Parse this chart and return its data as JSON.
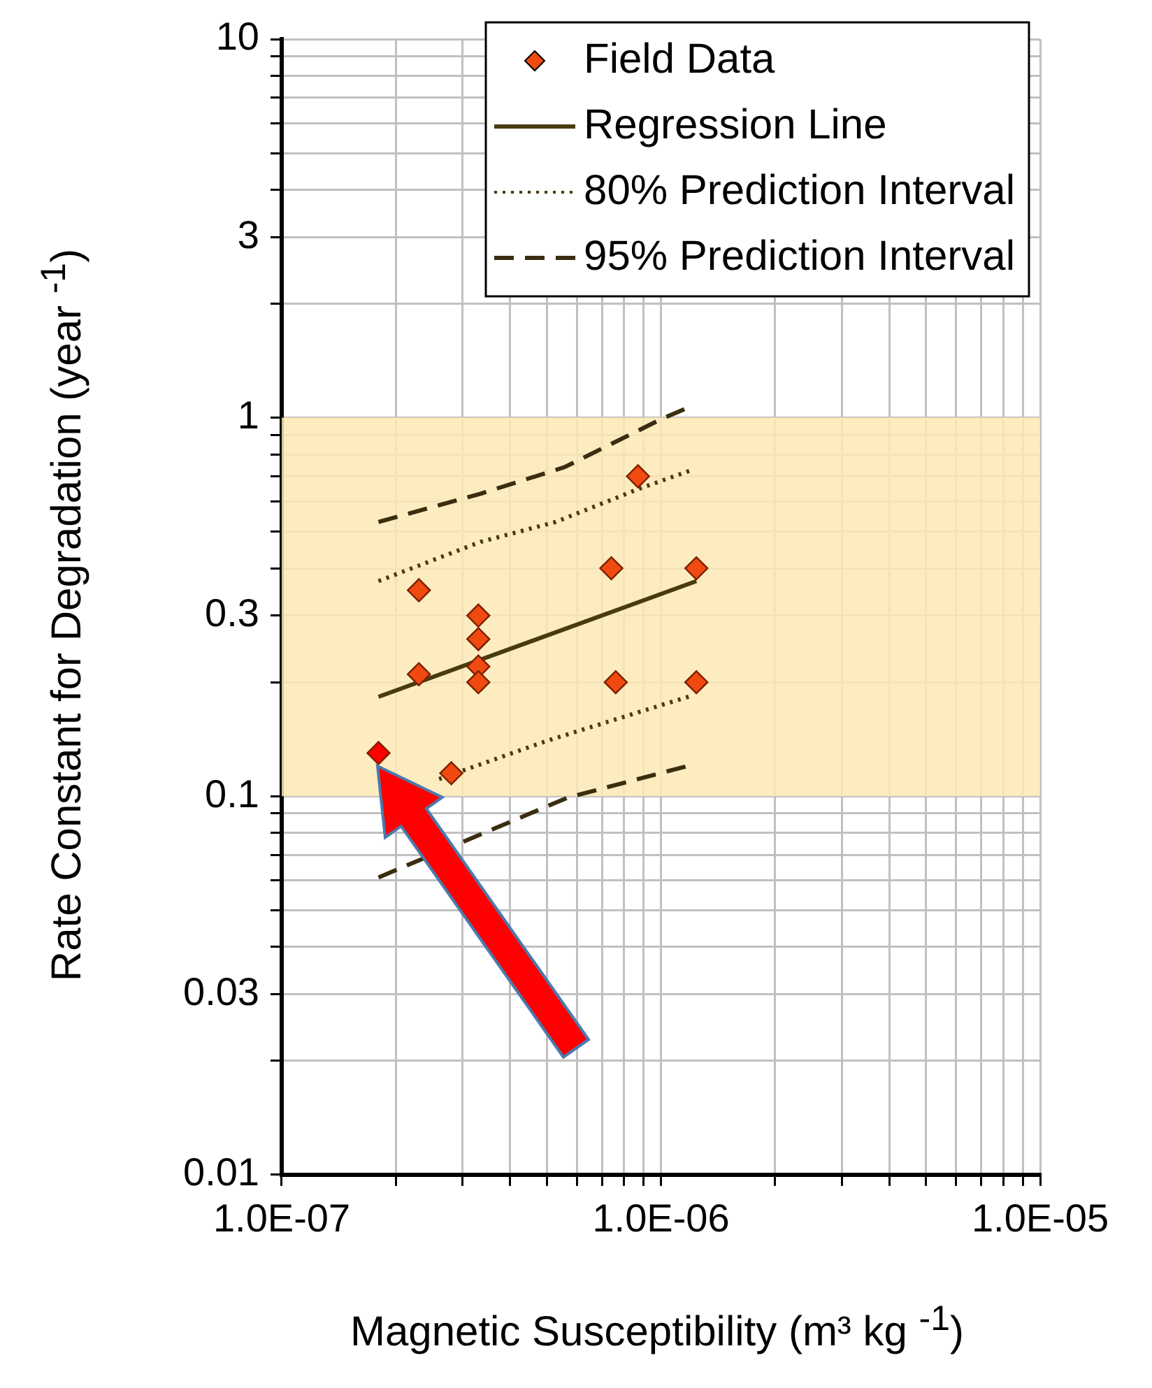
{
  "chart_data": {
    "type": "scatter",
    "log": "xy",
    "grid": true,
    "legend": "top right",
    "xlabel": "Magnetic Susceptibility (m³ kg $^{-1}$)",
    "ylabel": "Rate Constant for Degradation (year $^{-1}$)",
    "xlim": [
      1e-07,
      1e-05
    ],
    "xticks": [
      {
        "value": 1e-07,
        "label": "1.0E-07"
      },
      {
        "value": 2e-07,
        "label": null
      },
      {
        "value": 3e-07,
        "label": null
      },
      {
        "value": 4e-07,
        "label": null
      },
      {
        "value": 5e-07,
        "label": null
      },
      {
        "value": 6e-07,
        "label": null
      },
      {
        "value": 7e-07,
        "label": null
      },
      {
        "value": 8e-07,
        "label": null
      },
      {
        "value": 9e-07,
        "label": null
      },
      {
        "value": 1e-06,
        "label": "1.0E-06"
      },
      {
        "value": 2e-06,
        "label": null
      },
      {
        "value": 3e-06,
        "label": null
      },
      {
        "value": 4e-06,
        "label": null
      },
      {
        "value": 5e-06,
        "label": null
      },
      {
        "value": 6e-06,
        "label": null
      },
      {
        "value": 7e-06,
        "label": null
      },
      {
        "value": 8e-06,
        "label": null
      },
      {
        "value": 9e-06,
        "label": null
      },
      {
        "value": 1e-05,
        "label": "1.0E-05"
      }
    ],
    "ylim": [
      0.01,
      10
    ],
    "yticks": [
      0.01,
      {
        "value": 0.02,
        "label": null
      },
      0.03,
      {
        "value": 0.04,
        "label": null
      },
      {
        "value": 0.05,
        "label": null
      },
      {
        "value": 0.06,
        "label": null
      },
      {
        "value": 0.07,
        "label": null
      },
      {
        "value": 0.08,
        "label": null
      },
      {
        "value": 0.09,
        "label": null
      },
      0.1,
      {
        "value": 0.2,
        "label": null
      },
      0.3,
      {
        "value": 0.4,
        "label": null
      },
      {
        "value": 0.5,
        "label": null
      },
      {
        "value": 0.6,
        "label": null
      },
      {
        "value": 0.7,
        "label": null
      },
      {
        "value": 0.8,
        "label": null
      },
      {
        "value": 0.9,
        "label": null
      },
      1,
      {
        "value": 2,
        "label": null
      },
      3,
      {
        "value": 4,
        "label": null
      },
      {
        "value": 5,
        "label": null
      },
      {
        "value": 6,
        "label": null
      },
      {
        "value": 7,
        "label": null
      },
      {
        "value": 8,
        "label": null
      },
      {
        "value": 9,
        "label": null
      },
      10
    ],
    "bands": [
      {
        "axis": "y",
        "from": 0.1,
        "to": 1,
        "color": "#fde9b4"
      }
    ],
    "series": [
      {
        "name": "Field Data",
        "marker": "diamond",
        "color": "#f04a10",
        "colors": [
          "#ff0000",
          "#f04a10",
          "#f04a10",
          "#f04a10",
          "#f04a10",
          "#f04a10",
          "#f04a10",
          "#f04a10",
          "#f04a10",
          "#f04a10",
          "#f04a10",
          "#f04a10",
          "#f04a10"
        ],
        "x": [
          1.8e-07,
          2.3e-07,
          2.3e-07,
          2.8e-07,
          3.3e-07,
          3.3e-07,
          3.3e-07,
          3.3e-07,
          7.4e-07,
          7.6e-07,
          8.7e-07,
          1.24e-06,
          1.24e-06
        ],
        "values": [
          0.13,
          0.35,
          0.21,
          0.115,
          0.3,
          0.26,
          0.22,
          0.2,
          0.4,
          0.2,
          0.7,
          0.4,
          0.2
        ]
      },
      {
        "name": "Regression Line",
        "type": "line",
        "marker": "none",
        "line_style": "solid",
        "color": "#4a3a10",
        "x": [
          1.8e-07,
          1.24e-06
        ],
        "values": [
          0.183,
          0.37
        ]
      },
      {
        "name": "80% Prediction Interval",
        "type": "line",
        "marker": "none",
        "line_style": "dotted",
        "color": "#4a3a10",
        "x": [
          1.8e-07,
          3.35e-07,
          5.27e-07,
          8.8e-07,
          1.22e-06
        ],
        "values": [
          0.37,
          0.47,
          0.53,
          0.65,
          0.73
        ]
      },
      {
        "type": "line",
        "marker": "none",
        "line_style": "dotted",
        "color": "#4a3a10",
        "x": [
          2.6e-07,
          5e-07,
          1.22e-06
        ],
        "values": [
          0.111,
          0.14,
          0.185
        ]
      },
      {
        "name": "95% Prediction Interval",
        "type": "line",
        "marker": "none",
        "line_style": "dashed",
        "color": "#3a2e10",
        "x": [
          1.8e-07,
          3.35e-07,
          5.57e-07,
          1e-06,
          1.17e-06
        ],
        "values": [
          0.53,
          0.63,
          0.74,
          0.99,
          1.06
        ]
      },
      {
        "type": "line",
        "marker": "none",
        "line_style": "dashed",
        "color": "#3a2e10",
        "x": [
          1.8e-07,
          5.66e-07,
          1.17e-06
        ],
        "values": [
          0.061,
          0.099,
          0.12
        ]
      }
    ]
  }
}
